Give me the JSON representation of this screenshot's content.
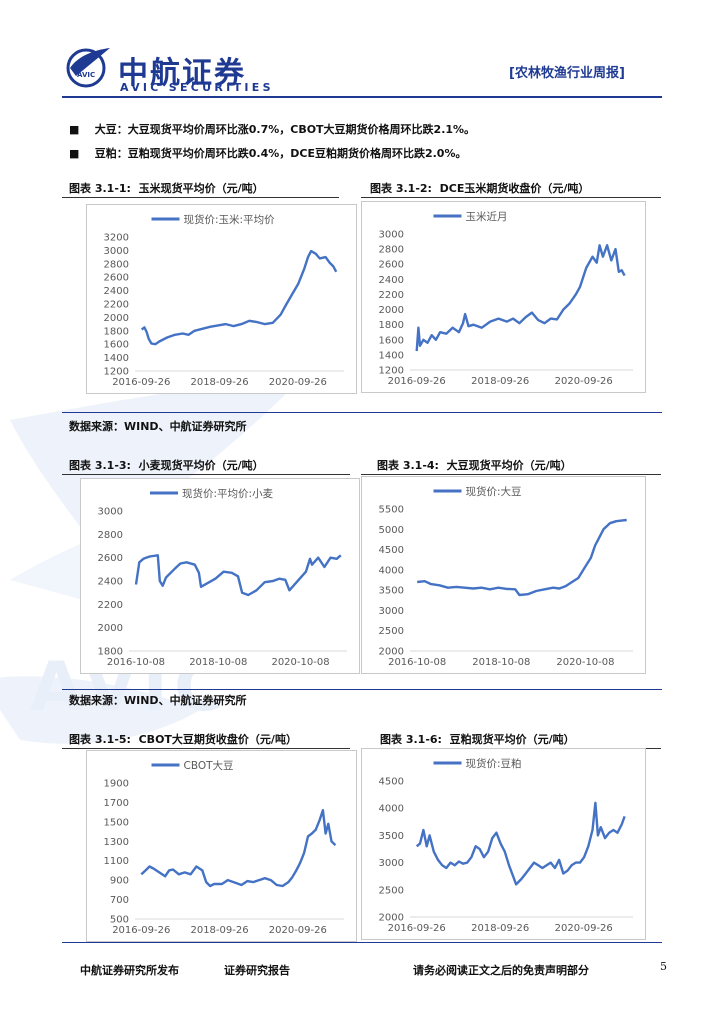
{
  "header": {
    "logo_cn": "中航证券",
    "logo_en": "AVIC SECURITIES",
    "logo_badge": "AVIC",
    "report_type": "[农林牧渔行业周报]"
  },
  "bullets": [
    {
      "term": "大豆：",
      "text": "大豆现货平均价周环比涨0.7%，CBOT大豆期货价格周环比跌2.1%。"
    },
    {
      "term": "豆粕：",
      "text": "豆粕现货平均价周环比跌0.4%，DCE豆粕期货价格周环比跌2.0%。"
    }
  ],
  "watermark": "AVIC",
  "figures": {
    "f1": {
      "label": "图表 3.1-1:",
      "title": "玉米现货平均价（元/吨）"
    },
    "f2": {
      "label": "图表 3.1-2:",
      "title": "DCE玉米期货收盘价（元/吨）"
    },
    "f3": {
      "label": "图表 3.1-3:",
      "title": "小麦现货平均价（元/吨）"
    },
    "f4": {
      "label": "图表 3.1-4:",
      "title": "大豆现货平均价（元/吨）"
    },
    "f5": {
      "label": "图表 3.1-5:",
      "title": "CBOT大豆期货收盘价（元/吨）"
    },
    "f6": {
      "label": "图表 3.1-6:",
      "title": "豆粕现货平均价（元/吨）"
    }
  },
  "sources": {
    "s1": "数据来源：WIND、中航证券研究所",
    "s2": "数据来源：WIND、中航证券研究所"
  },
  "footer": {
    "publisher": "中航证券研究所发布",
    "report_kind": "证券研究报告",
    "disclaimer": "请务必阅读正文之后的免责声明部分",
    "page": "5"
  },
  "chart_data": [
    {
      "id": "c1",
      "type": "line",
      "series_color": "#4472c4",
      "legend": "现货价:玉米:平均价",
      "ylim": [
        1200,
        3200
      ],
      "yticks": [
        1200,
        1400,
        1600,
        1800,
        2000,
        2200,
        2400,
        2600,
        2800,
        3000,
        3200
      ],
      "xlim": [
        2016.58,
        2021.92
      ],
      "xticks": [
        [
          2016.74,
          "2016-09-26"
        ],
        [
          2018.74,
          "2018-09-26"
        ],
        [
          2020.74,
          "2020-09-26"
        ]
      ],
      "points": [
        [
          2016.75,
          1820
        ],
        [
          2016.82,
          1850
        ],
        [
          2016.88,
          1780
        ],
        [
          2016.93,
          1680
        ],
        [
          2017.0,
          1610
        ],
        [
          2017.1,
          1600
        ],
        [
          2017.2,
          1640
        ],
        [
          2017.4,
          1700
        ],
        [
          2017.6,
          1740
        ],
        [
          2017.8,
          1760
        ],
        [
          2017.95,
          1740
        ],
        [
          2018.1,
          1800
        ],
        [
          2018.3,
          1830
        ],
        [
          2018.5,
          1860
        ],
        [
          2018.7,
          1880
        ],
        [
          2018.9,
          1900
        ],
        [
          2019.1,
          1870
        ],
        [
          2019.3,
          1900
        ],
        [
          2019.5,
          1950
        ],
        [
          2019.7,
          1930
        ],
        [
          2019.9,
          1900
        ],
        [
          2020.1,
          1920
        ],
        [
          2020.3,
          2040
        ],
        [
          2020.45,
          2200
        ],
        [
          2020.6,
          2350
        ],
        [
          2020.75,
          2500
        ],
        [
          2020.9,
          2720
        ],
        [
          2021.0,
          2900
        ],
        [
          2021.08,
          2990
        ],
        [
          2021.2,
          2950
        ],
        [
          2021.3,
          2880
        ],
        [
          2021.45,
          2900
        ],
        [
          2021.55,
          2820
        ],
        [
          2021.65,
          2760
        ],
        [
          2021.72,
          2680
        ]
      ]
    },
    {
      "id": "c2",
      "type": "line",
      "series_color": "#4472c4",
      "legend": "玉米近月",
      "ylim": [
        1200,
        3000
      ],
      "yticks": [
        1200,
        1400,
        1600,
        1800,
        2000,
        2200,
        2400,
        2600,
        2800,
        3000
      ],
      "xlim": [
        2016.58,
        2021.92
      ],
      "xticks": [
        [
          2016.74,
          "2016-09-26"
        ],
        [
          2018.74,
          "2018-09-26"
        ],
        [
          2020.74,
          "2020-09-26"
        ]
      ],
      "points": [
        [
          2016.74,
          1450
        ],
        [
          2016.78,
          1760
        ],
        [
          2016.82,
          1520
        ],
        [
          2016.9,
          1600
        ],
        [
          2017.0,
          1560
        ],
        [
          2017.1,
          1660
        ],
        [
          2017.2,
          1600
        ],
        [
          2017.3,
          1700
        ],
        [
          2017.45,
          1680
        ],
        [
          2017.6,
          1760
        ],
        [
          2017.75,
          1700
        ],
        [
          2017.85,
          1820
        ],
        [
          2017.9,
          1940
        ],
        [
          2017.98,
          1780
        ],
        [
          2018.1,
          1800
        ],
        [
          2018.3,
          1760
        ],
        [
          2018.5,
          1840
        ],
        [
          2018.7,
          1880
        ],
        [
          2018.9,
          1840
        ],
        [
          2019.05,
          1880
        ],
        [
          2019.2,
          1820
        ],
        [
          2019.35,
          1900
        ],
        [
          2019.5,
          1960
        ],
        [
          2019.65,
          1860
        ],
        [
          2019.8,
          1820
        ],
        [
          2019.95,
          1880
        ],
        [
          2020.1,
          1870
        ],
        [
          2020.25,
          2000
        ],
        [
          2020.4,
          2080
        ],
        [
          2020.55,
          2200
        ],
        [
          2020.65,
          2300
        ],
        [
          2020.8,
          2550
        ],
        [
          2020.95,
          2700
        ],
        [
          2021.05,
          2620
        ],
        [
          2021.12,
          2850
        ],
        [
          2021.2,
          2700
        ],
        [
          2021.3,
          2850
        ],
        [
          2021.4,
          2650
        ],
        [
          2021.5,
          2800
        ],
        [
          2021.58,
          2500
        ],
        [
          2021.65,
          2520
        ],
        [
          2021.72,
          2450
        ]
      ]
    },
    {
      "id": "c3",
      "type": "line",
      "series_color": "#4472c4",
      "legend": "现货价:平均价:小麦",
      "ylim": [
        1800,
        3000
      ],
      "yticks": [
        1800,
        2000,
        2200,
        2400,
        2600,
        2800,
        3000
      ],
      "xlim": [
        2016.6,
        2021.9
      ],
      "xticks": [
        [
          2016.77,
          "2016-10-08"
        ],
        [
          2018.77,
          "2018-10-08"
        ],
        [
          2020.77,
          "2020-10-08"
        ]
      ],
      "points": [
        [
          2016.77,
          2370
        ],
        [
          2016.85,
          2560
        ],
        [
          2016.95,
          2590
        ],
        [
          2017.1,
          2610
        ],
        [
          2017.3,
          2620
        ],
        [
          2017.35,
          2400
        ],
        [
          2017.42,
          2360
        ],
        [
          2017.5,
          2430
        ],
        [
          2017.7,
          2500
        ],
        [
          2017.85,
          2550
        ],
        [
          2018.0,
          2560
        ],
        [
          2018.2,
          2540
        ],
        [
          2018.3,
          2470
        ],
        [
          2018.35,
          2350
        ],
        [
          2018.5,
          2380
        ],
        [
          2018.7,
          2420
        ],
        [
          2018.9,
          2480
        ],
        [
          2019.1,
          2470
        ],
        [
          2019.25,
          2440
        ],
        [
          2019.35,
          2300
        ],
        [
          2019.5,
          2280
        ],
        [
          2019.7,
          2320
        ],
        [
          2019.9,
          2390
        ],
        [
          2020.1,
          2400
        ],
        [
          2020.25,
          2420
        ],
        [
          2020.4,
          2410
        ],
        [
          2020.5,
          2320
        ],
        [
          2020.6,
          2360
        ],
        [
          2020.75,
          2420
        ],
        [
          2020.9,
          2480
        ],
        [
          2021.0,
          2590
        ],
        [
          2021.05,
          2540
        ],
        [
          2021.2,
          2600
        ],
        [
          2021.35,
          2520
        ],
        [
          2021.5,
          2600
        ],
        [
          2021.65,
          2590
        ],
        [
          2021.75,
          2620
        ]
      ]
    },
    {
      "id": "c4",
      "type": "line",
      "series_color": "#4472c4",
      "legend": "现货价:大豆",
      "ylim": [
        2000,
        5500
      ],
      "yticks": [
        2000,
        2500,
        3000,
        3500,
        4000,
        4500,
        5000,
        5500
      ],
      "xlim": [
        2016.6,
        2021.9
      ],
      "xticks": [
        [
          2016.77,
          "2016-10-08"
        ],
        [
          2018.77,
          "2018-10-08"
        ],
        [
          2020.77,
          "2020-10-08"
        ]
      ],
      "points": [
        [
          2016.77,
          3700
        ],
        [
          2016.95,
          3720
        ],
        [
          2017.1,
          3650
        ],
        [
          2017.3,
          3620
        ],
        [
          2017.5,
          3560
        ],
        [
          2017.7,
          3580
        ],
        [
          2017.9,
          3560
        ],
        [
          2018.1,
          3540
        ],
        [
          2018.3,
          3560
        ],
        [
          2018.5,
          3520
        ],
        [
          2018.7,
          3560
        ],
        [
          2018.9,
          3530
        ],
        [
          2019.1,
          3520
        ],
        [
          2019.2,
          3380
        ],
        [
          2019.4,
          3400
        ],
        [
          2019.6,
          3480
        ],
        [
          2019.8,
          3520
        ],
        [
          2020.0,
          3560
        ],
        [
          2020.15,
          3540
        ],
        [
          2020.3,
          3600
        ],
        [
          2020.45,
          3700
        ],
        [
          2020.6,
          3800
        ],
        [
          2020.75,
          4050
        ],
        [
          2020.9,
          4300
        ],
        [
          2021.0,
          4600
        ],
        [
          2021.1,
          4800
        ],
        [
          2021.2,
          5000
        ],
        [
          2021.35,
          5150
        ],
        [
          2021.5,
          5200
        ],
        [
          2021.65,
          5220
        ],
        [
          2021.75,
          5230
        ]
      ]
    },
    {
      "id": "c5",
      "type": "line",
      "series_color": "#4472c4",
      "legend": "CBOT大豆",
      "ylim": [
        500,
        1900
      ],
      "yticks": [
        500,
        700,
        900,
        1100,
        1300,
        1500,
        1700,
        1900
      ],
      "xlim": [
        2016.58,
        2021.92
      ],
      "xticks": [
        [
          2016.74,
          "2016-09-26"
        ],
        [
          2018.74,
          "2018-09-26"
        ],
        [
          2020.74,
          "2020-09-26"
        ]
      ],
      "points": [
        [
          2016.74,
          960
        ],
        [
          2016.85,
          1000
        ],
        [
          2016.95,
          1040
        ],
        [
          2017.05,
          1020
        ],
        [
          2017.2,
          980
        ],
        [
          2017.35,
          940
        ],
        [
          2017.45,
          1000
        ],
        [
          2017.55,
          1010
        ],
        [
          2017.7,
          960
        ],
        [
          2017.85,
          980
        ],
        [
          2018.0,
          960
        ],
        [
          2018.15,
          1040
        ],
        [
          2018.3,
          1000
        ],
        [
          2018.4,
          880
        ],
        [
          2018.5,
          840
        ],
        [
          2018.6,
          860
        ],
        [
          2018.8,
          860
        ],
        [
          2018.95,
          900
        ],
        [
          2019.1,
          880
        ],
        [
          2019.3,
          850
        ],
        [
          2019.45,
          890
        ],
        [
          2019.6,
          880
        ],
        [
          2019.75,
          900
        ],
        [
          2019.9,
          920
        ],
        [
          2020.05,
          900
        ],
        [
          2020.2,
          850
        ],
        [
          2020.35,
          840
        ],
        [
          2020.5,
          880
        ],
        [
          2020.6,
          930
        ],
        [
          2020.7,
          1000
        ],
        [
          2020.8,
          1080
        ],
        [
          2020.9,
          1180
        ],
        [
          2021.0,
          1350
        ],
        [
          2021.1,
          1380
        ],
        [
          2021.2,
          1420
        ],
        [
          2021.3,
          1520
        ],
        [
          2021.38,
          1620
        ],
        [
          2021.45,
          1380
        ],
        [
          2021.52,
          1480
        ],
        [
          2021.6,
          1300
        ],
        [
          2021.7,
          1260
        ]
      ]
    },
    {
      "id": "c6",
      "type": "line",
      "series_color": "#4472c4",
      "legend": "现货价:豆粕",
      "ylim": [
        2000,
        4500
      ],
      "yticks": [
        2000,
        2500,
        3000,
        3500,
        4000,
        4500
      ],
      "xlim": [
        2016.58,
        2021.92
      ],
      "xticks": [
        [
          2016.74,
          "2016-09-26"
        ],
        [
          2018.74,
          "2018-09-26"
        ],
        [
          2020.74,
          "2020-09-26"
        ]
      ],
      "points": [
        [
          2016.74,
          3300
        ],
        [
          2016.82,
          3350
        ],
        [
          2016.9,
          3600
        ],
        [
          2016.98,
          3300
        ],
        [
          2017.05,
          3500
        ],
        [
          2017.15,
          3200
        ],
        [
          2017.25,
          3050
        ],
        [
          2017.35,
          2950
        ],
        [
          2017.45,
          2900
        ],
        [
          2017.55,
          3000
        ],
        [
          2017.65,
          2950
        ],
        [
          2017.75,
          3020
        ],
        [
          2017.85,
          2980
        ],
        [
          2017.95,
          3000
        ],
        [
          2018.05,
          3100
        ],
        [
          2018.15,
          3300
        ],
        [
          2018.25,
          3250
        ],
        [
          2018.35,
          3100
        ],
        [
          2018.45,
          3200
        ],
        [
          2018.55,
          3450
        ],
        [
          2018.65,
          3550
        ],
        [
          2018.75,
          3350
        ],
        [
          2018.85,
          3200
        ],
        [
          2018.95,
          2950
        ],
        [
          2019.05,
          2750
        ],
        [
          2019.12,
          2600
        ],
        [
          2019.25,
          2700
        ],
        [
          2019.35,
          2800
        ],
        [
          2019.45,
          2900
        ],
        [
          2019.55,
          3000
        ],
        [
          2019.65,
          2950
        ],
        [
          2019.75,
          2900
        ],
        [
          2019.85,
          2950
        ],
        [
          2019.95,
          3000
        ],
        [
          2020.05,
          2900
        ],
        [
          2020.15,
          3050
        ],
        [
          2020.25,
          2800
        ],
        [
          2020.35,
          2850
        ],
        [
          2020.45,
          2950
        ],
        [
          2020.55,
          3000
        ],
        [
          2020.65,
          3000
        ],
        [
          2020.75,
          3100
        ],
        [
          2020.85,
          3300
        ],
        [
          2020.95,
          3600
        ],
        [
          2021.02,
          4100
        ],
        [
          2021.08,
          3500
        ],
        [
          2021.15,
          3650
        ],
        [
          2021.25,
          3450
        ],
        [
          2021.35,
          3550
        ],
        [
          2021.45,
          3600
        ],
        [
          2021.55,
          3550
        ],
        [
          2021.65,
          3700
        ],
        [
          2021.72,
          3850
        ]
      ]
    }
  ]
}
